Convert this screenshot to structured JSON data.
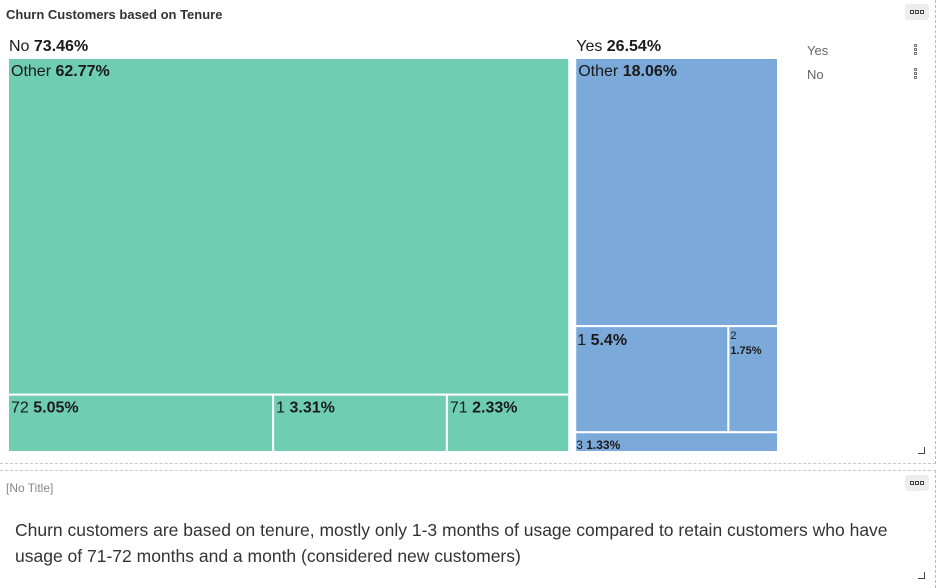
{
  "chart_panel": {
    "title": "Churn Customers based on Tenure"
  },
  "text_panel": {
    "title": "[No Title]",
    "body": "Churn customers are based on tenure, mostly only 1-3 months of usage compared to retain customers who have usage of 71-72 months and a month (considered new customers)"
  },
  "colors": {
    "No": "#6fcdb1",
    "Yes": "#7ba9da",
    "border": "#ffffff"
  },
  "chart_data": {
    "type": "treemap",
    "title": "Churn Customers based on Tenure",
    "unit": "%",
    "groups": [
      {
        "name": "No",
        "value": 73.46,
        "children": [
          {
            "name": "Other",
            "value": 62.77
          },
          {
            "name": "72",
            "value": 5.05
          },
          {
            "name": "1",
            "value": 3.31
          },
          {
            "name": "71",
            "value": 2.33
          }
        ]
      },
      {
        "name": "Yes",
        "value": 26.54,
        "children": [
          {
            "name": "Other",
            "value": 18.06
          },
          {
            "name": "1",
            "value": 5.4
          },
          {
            "name": "2",
            "value": 1.75
          },
          {
            "name": "3",
            "value": 1.33
          }
        ]
      }
    ],
    "legend": {
      "position": "right",
      "items": [
        "Yes",
        "No"
      ]
    }
  }
}
